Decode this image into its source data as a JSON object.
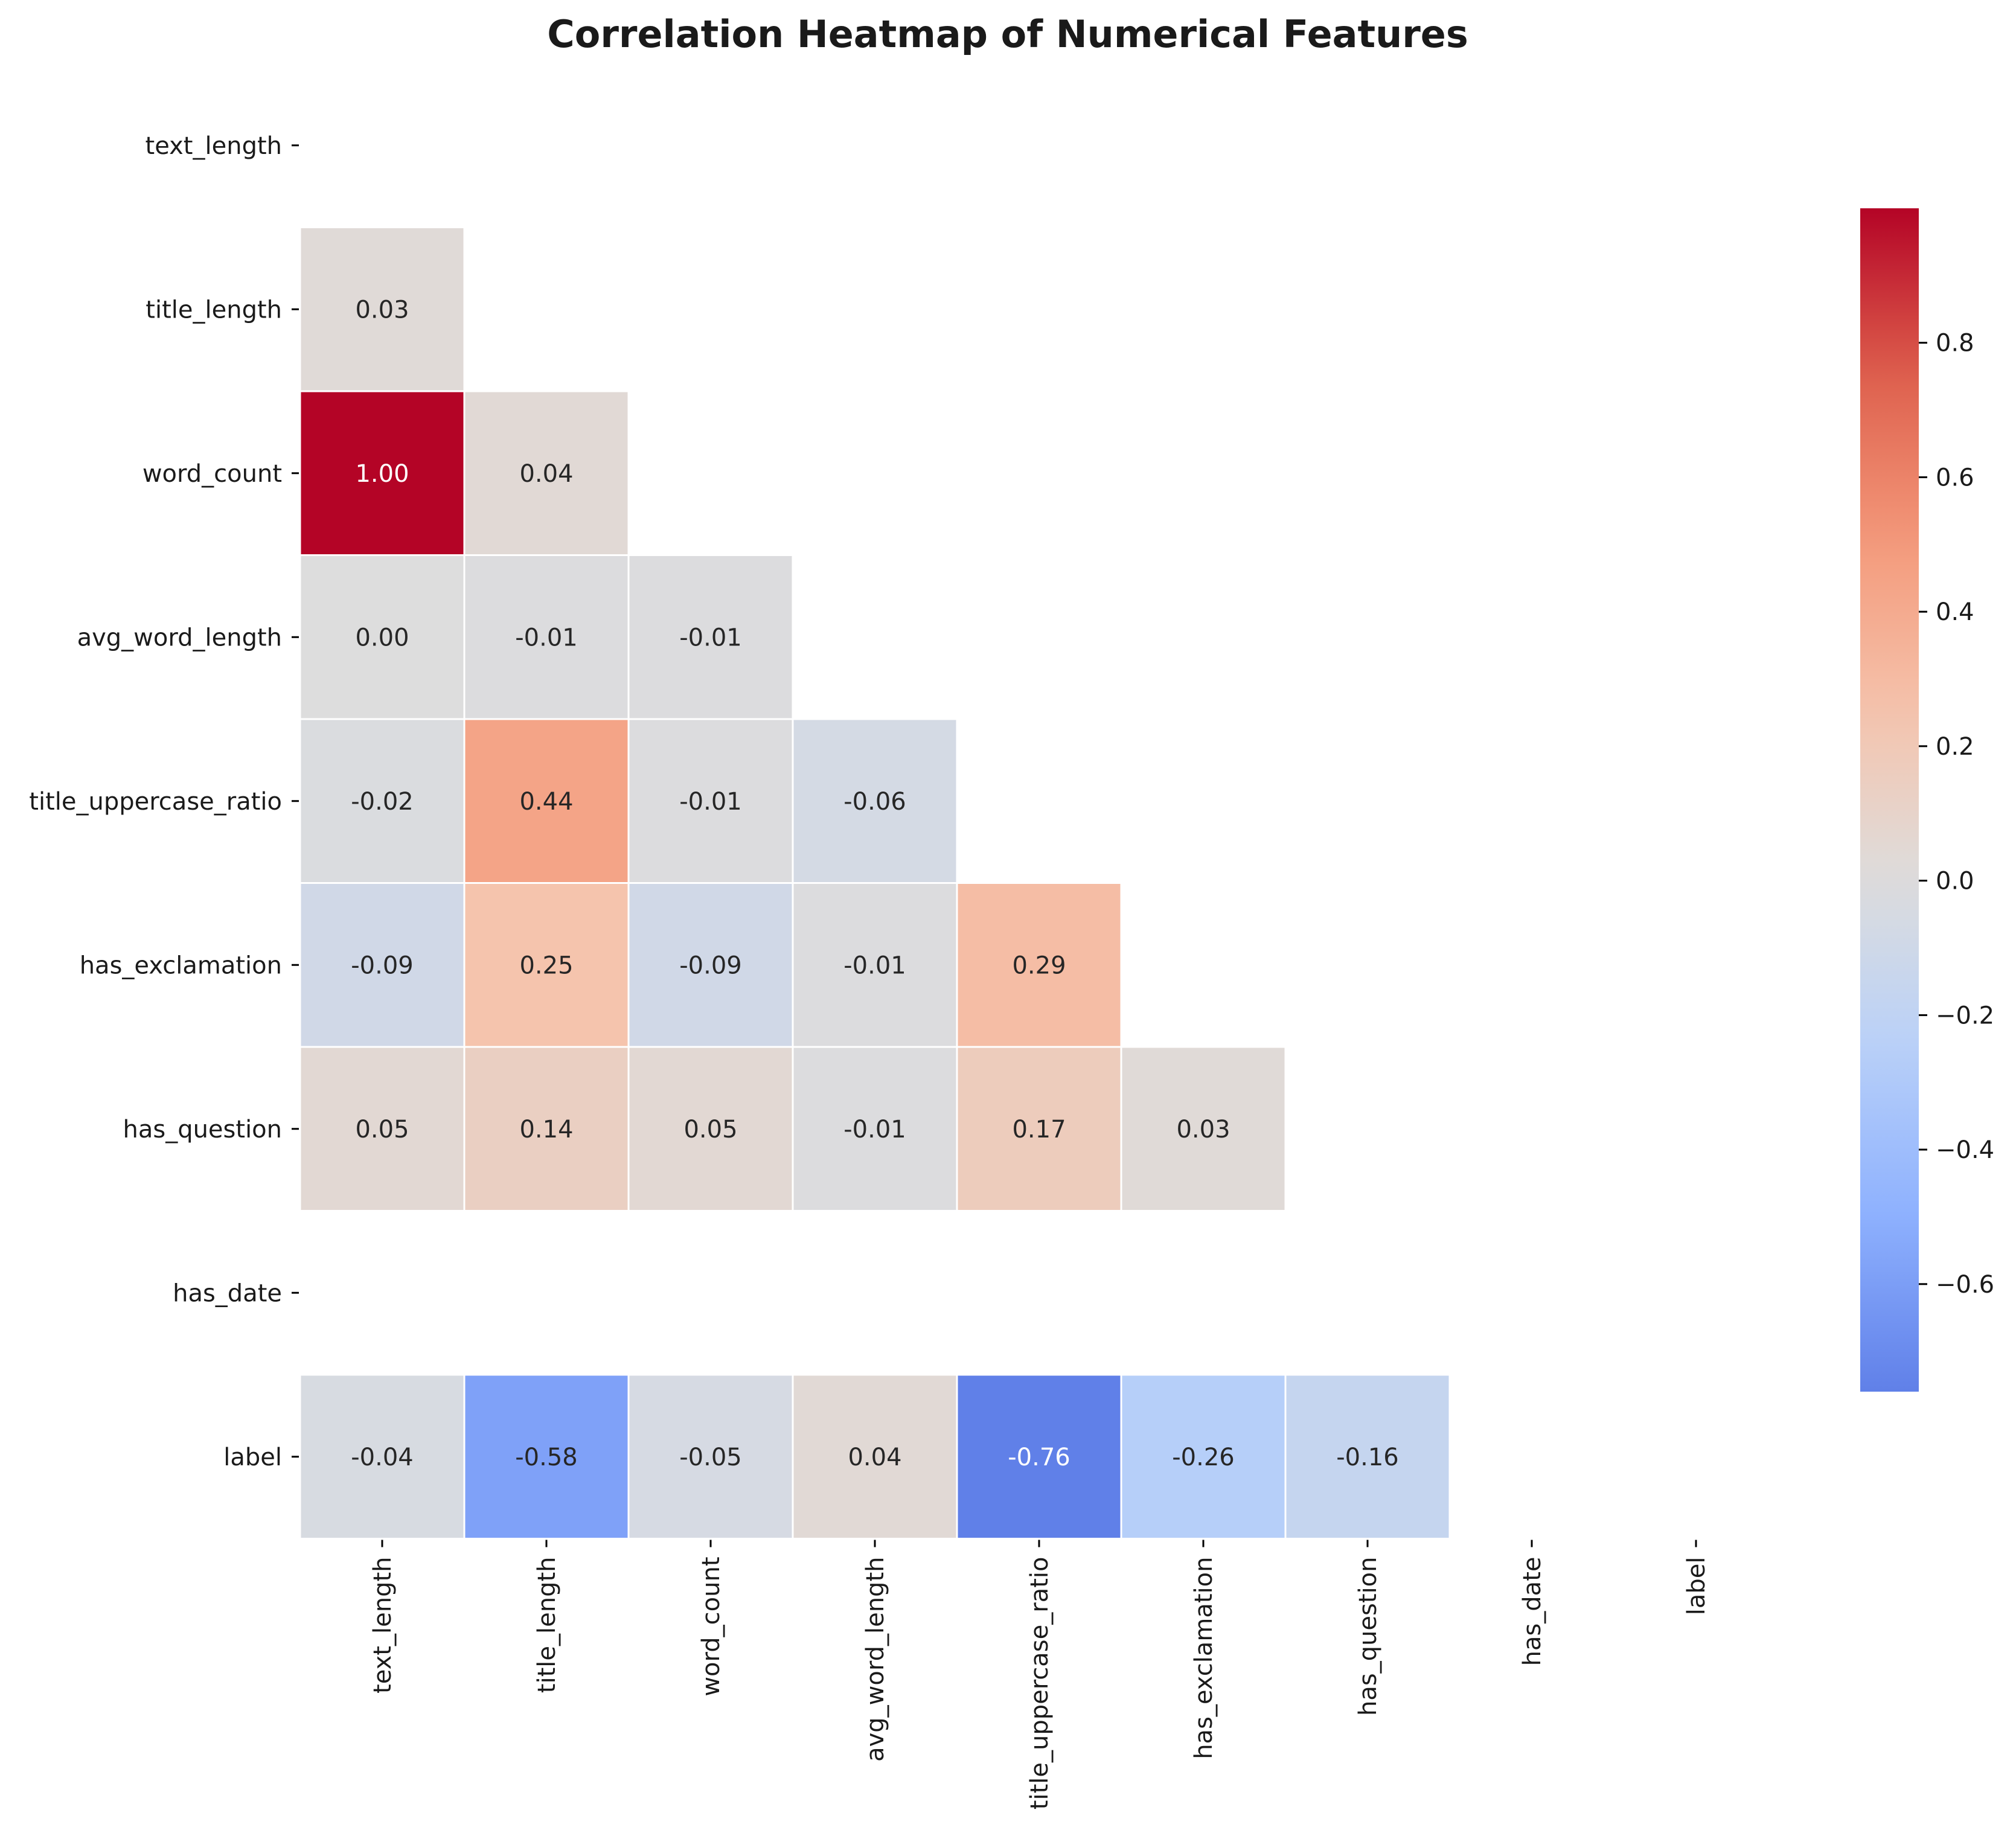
{
  "chart_data": {
    "type": "heatmap",
    "title": "Correlation Heatmap of Numerical Features",
    "xlabel": "",
    "ylabel": "",
    "rows": [
      "text_length",
      "title_length",
      "word_count",
      "avg_word_length",
      "title_uppercase_ratio",
      "has_exclamation",
      "has_question",
      "has_date",
      "label"
    ],
    "columns": [
      "text_length",
      "title_length",
      "word_count",
      "avg_word_length",
      "title_uppercase_ratio",
      "has_exclamation",
      "has_question",
      "has_date",
      "label"
    ],
    "mask": "upper-triangle-and-diagonal",
    "values": [
      [
        null,
        null,
        null,
        null,
        null,
        null,
        null,
        null,
        null
      ],
      [
        0.03,
        null,
        null,
        null,
        null,
        null,
        null,
        null,
        null
      ],
      [
        1.0,
        0.04,
        null,
        null,
        null,
        null,
        null,
        null,
        null
      ],
      [
        -0.0,
        -0.01,
        -0.01,
        null,
        null,
        null,
        null,
        null,
        null
      ],
      [
        -0.02,
        0.44,
        -0.01,
        -0.06,
        null,
        null,
        null,
        null,
        null
      ],
      [
        -0.09,
        0.25,
        -0.09,
        -0.01,
        0.29,
        null,
        null,
        null,
        null
      ],
      [
        0.05,
        0.14,
        0.05,
        -0.01,
        0.17,
        0.03,
        null,
        null,
        null
      ],
      [
        null,
        null,
        null,
        null,
        null,
        null,
        null,
        null,
        null
      ],
      [
        -0.04,
        -0.58,
        -0.05,
        0.04,
        -0.76,
        -0.26,
        -0.16,
        null,
        null
      ]
    ],
    "value_format": "2 decimals",
    "colormap": "coolwarm",
    "colorbar": {
      "range": [
        -0.76,
        1.0
      ],
      "ticks": [
        -0.6,
        -0.4,
        -0.2,
        0.0,
        0.2,
        0.4,
        0.6,
        0.8
      ],
      "tick_labels": [
        "−0.6",
        "−0.4",
        "−0.2",
        "0.0",
        "0.2",
        "0.4",
        "0.6",
        "0.8"
      ],
      "placement": "right"
    },
    "grid": false,
    "legend": "none"
  }
}
